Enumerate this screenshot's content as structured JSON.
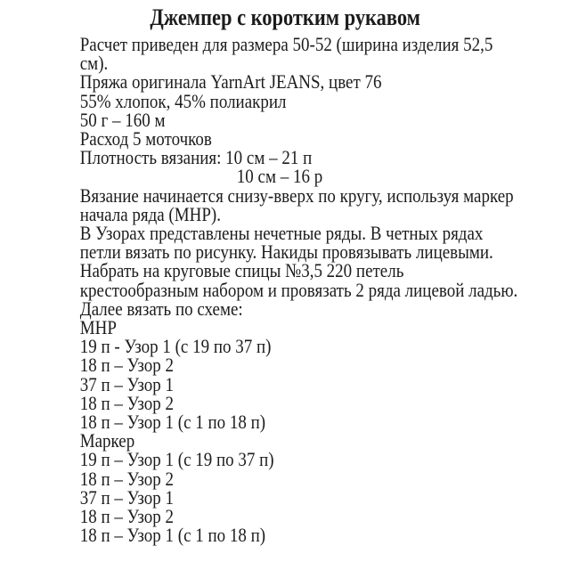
{
  "doc": {
    "background": "#ffffff",
    "text_color": "#1c1c1c",
    "title": "Джемпер с коротким рукавом",
    "lines": [
      {
        "text": "Расчет приведен для размера 50-52 (ширина изделия 52,5",
        "indent": false
      },
      {
        "text": "см).",
        "indent": false
      },
      {
        "text": "Пряжа оригинала YarnArt JEANS, цвет 76",
        "indent": false
      },
      {
        "text": "55% хлопок, 45% полиакрил",
        "indent": false
      },
      {
        "text": "50 г – 160 м",
        "indent": false
      },
      {
        "text": "Расход 5 моточков",
        "indent": false
      },
      {
        "text": "Плотность вязания: 10 см – 21 п",
        "indent": false
      },
      {
        "text": "10 см – 16 р",
        "indent": true
      },
      {
        "text": "Вязание начинается снизу-вверх по кругу, используя маркер",
        "indent": false
      },
      {
        "text": "начала ряда (МНР).",
        "indent": false
      },
      {
        "text": "В Узорах представлены нечетные ряды. В четных рядах",
        "indent": false
      },
      {
        "text": "петли вязать по рисунку. Накиды провязывать лицевыми.",
        "indent": false
      },
      {
        "text": "Набрать на круговые спицы №3,5 220 петель",
        "indent": false
      },
      {
        "text": "крестообразным набором и провязать 2 ряда лицевой ладью.",
        "indent": false
      },
      {
        "text": "Далее вязать по схеме:",
        "indent": false
      },
      {
        "text": "МНР",
        "indent": false
      },
      {
        "text": "19 п - Узор 1 (с 19 по 37 п)",
        "indent": false
      },
      {
        "text": "18 п – Узор 2",
        "indent": false
      },
      {
        "text": "37 п – Узор 1",
        "indent": false
      },
      {
        "text": "18 п – Узор 2",
        "indent": false
      },
      {
        "text": "18 п – Узор 1 (с 1 по 18 п)",
        "indent": false
      },
      {
        "text": "Маркер",
        "indent": false
      },
      {
        "text": "19 п – Узор 1 (с 19 по 37 п)",
        "indent": false
      },
      {
        "text": "18 п – Узор 2",
        "indent": false
      },
      {
        "text": "37 п – Узор 1",
        "indent": false
      },
      {
        "text": "18 п – Узор 2",
        "indent": false
      },
      {
        "text": "18 п – Узор 1 (с 1 по 18 п)",
        "indent": false
      }
    ]
  }
}
